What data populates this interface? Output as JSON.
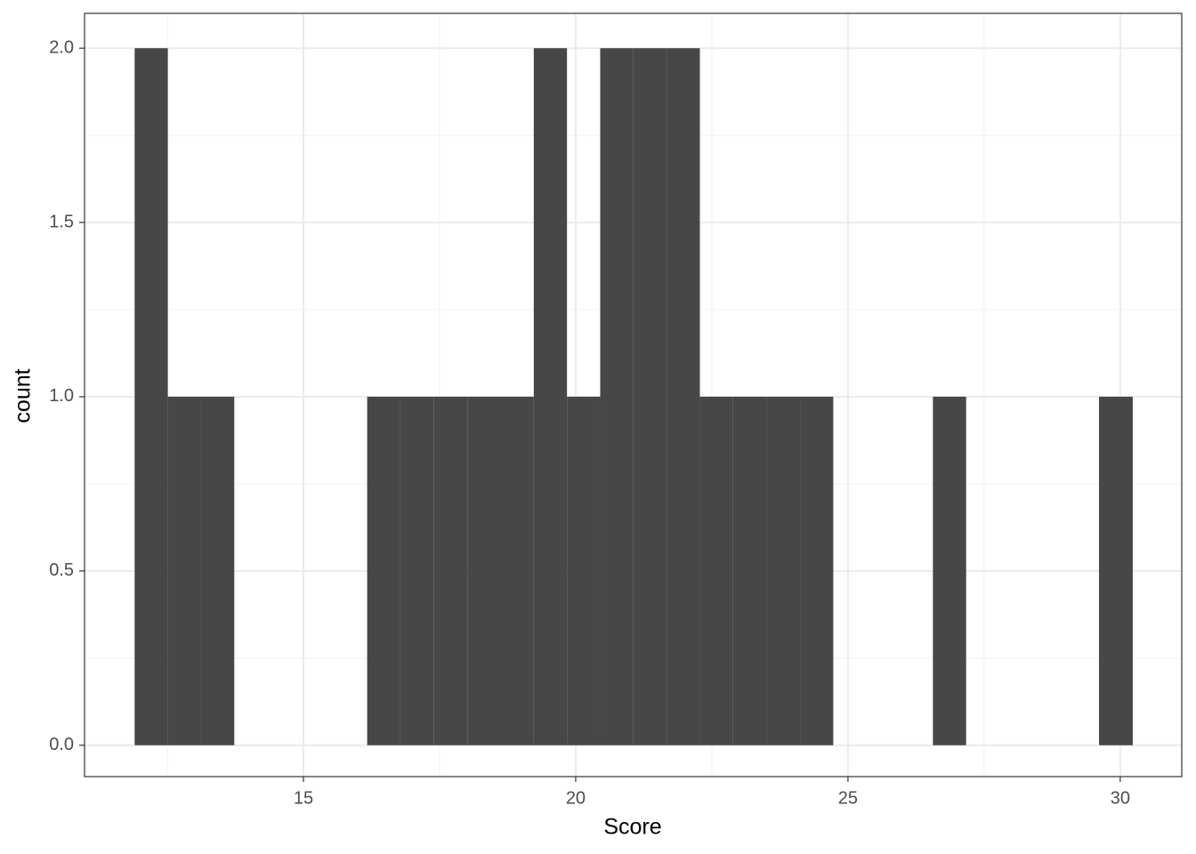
{
  "chart_data": {
    "type": "histogram",
    "x_label": "Score",
    "y_label": "count",
    "bins": [
      11.9,
      12.51,
      13.12,
      13.73,
      14.34,
      14.95,
      15.56,
      16.17,
      16.78,
      17.39,
      18.01,
      18.62,
      19.23,
      19.84,
      20.45,
      21.06,
      21.67,
      22.28,
      22.89,
      23.5,
      24.12,
      24.73,
      25.34,
      25.95,
      26.56,
      27.17,
      27.78,
      28.39,
      29.0,
      29.61,
      30.23
    ],
    "values": [
      2,
      1,
      1,
      0,
      0,
      0,
      0,
      1,
      1,
      1,
      1,
      1,
      2,
      1,
      2,
      2,
      2,
      1,
      1,
      1,
      1,
      0,
      0,
      0,
      1,
      0,
      0,
      0,
      0,
      1
    ],
    "color": "#474747",
    "xlim": [
      10.98,
      31.13
    ],
    "ylim": [
      -0.09,
      2.1
    ],
    "xticks": [
      15,
      20,
      25,
      30
    ],
    "yticks": [
      {
        "value": 0,
        "label": "0.0"
      },
      {
        "value": 0.5,
        "label": "0.5"
      },
      {
        "value": 1,
        "label": "1.0"
      },
      {
        "value": 1.5,
        "label": "1.5"
      },
      {
        "value": 2,
        "label": "2.0"
      }
    ],
    "x_minor_ticks": [
      12.5,
      17.5,
      22.5,
      27.5
    ],
    "y_minor_ticks": [
      0.25,
      0.75,
      1.25,
      1.75
    ],
    "grid": true
  }
}
